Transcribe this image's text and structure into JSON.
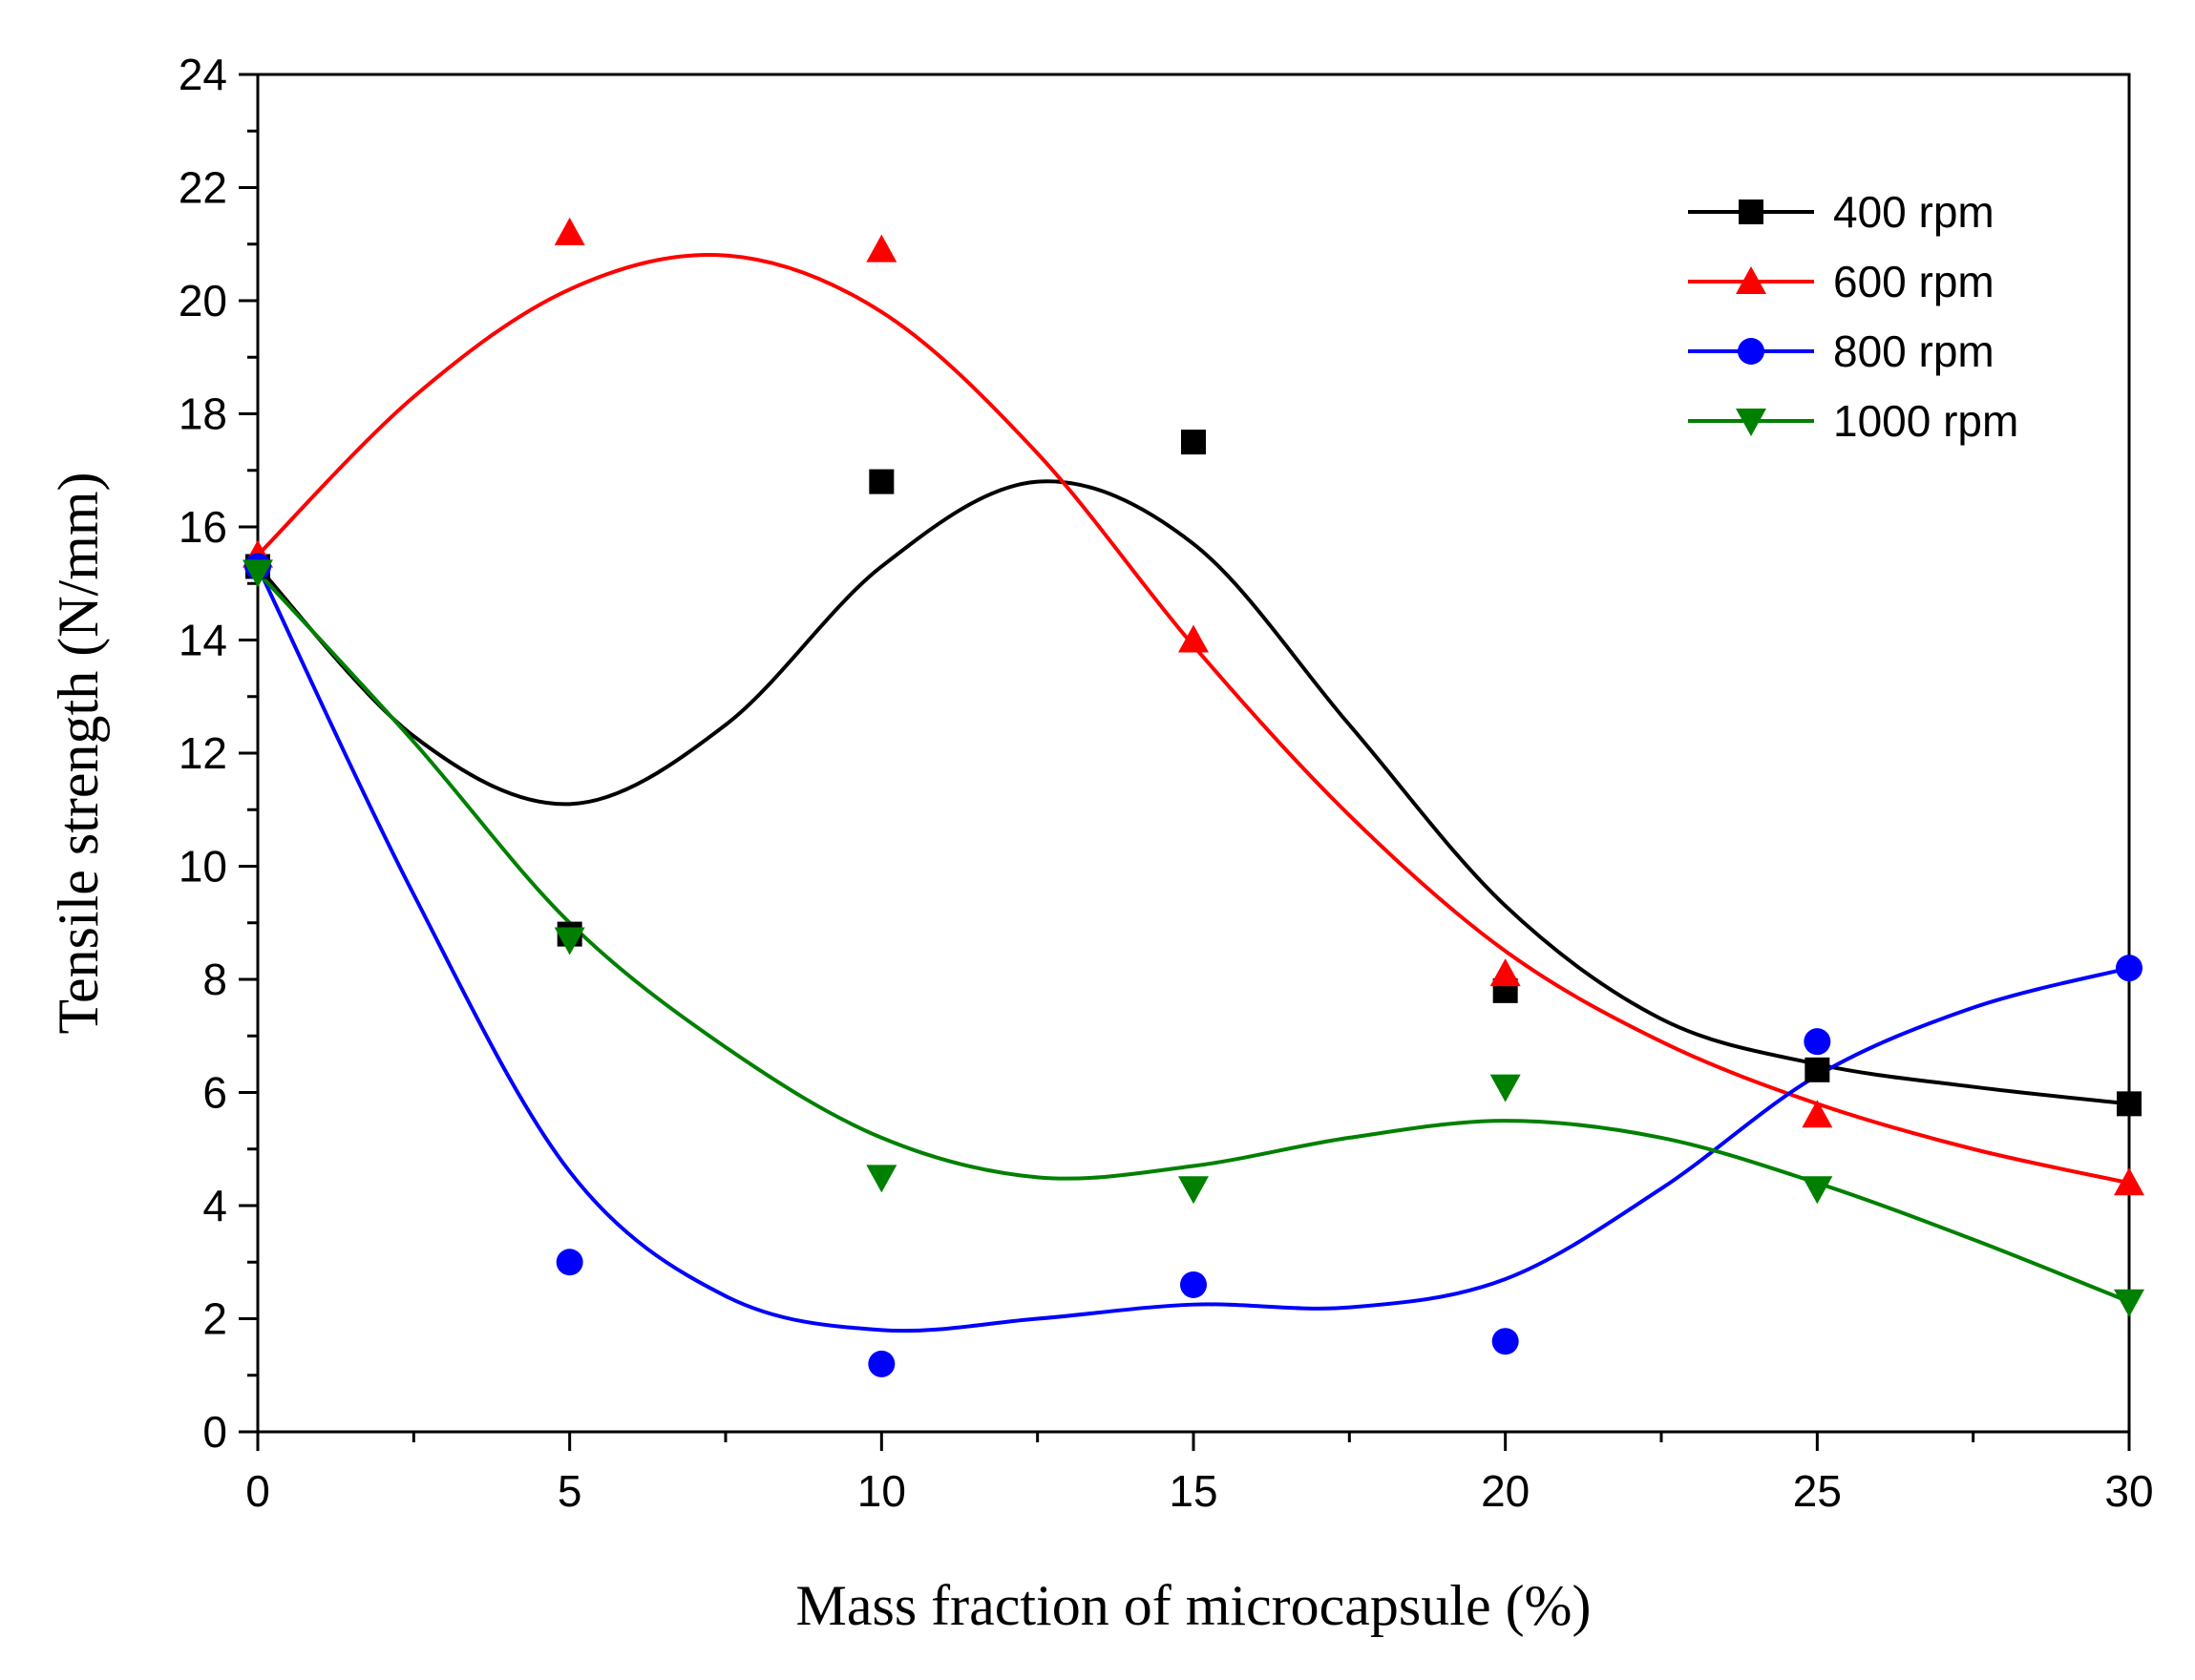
{
  "chart_data": {
    "type": "scatter",
    "title": "",
    "xlabel": "Mass fraction of microcapsule (%)",
    "ylabel": "Tensile strength (N/mm)",
    "xlim": [
      0,
      30
    ],
    "ylim": [
      0,
      24
    ],
    "xticks": [
      0,
      5,
      10,
      15,
      20,
      25,
      30
    ],
    "yticks": [
      0,
      2,
      4,
      6,
      8,
      10,
      12,
      14,
      16,
      18,
      20,
      22,
      24
    ],
    "grid": false,
    "legend_position": "top-right",
    "x": [
      0,
      5,
      10,
      15,
      20,
      25,
      30
    ],
    "series": [
      {
        "name": "400 rpm",
        "marker": "square",
        "color": "#000000",
        "values": [
          15.3,
          8.8,
          16.8,
          17.5,
          7.8,
          6.4,
          5.8
        ],
        "fit_curve": [
          [
            0,
            15.3
          ],
          [
            2.5,
            12.3
          ],
          [
            5,
            11.1
          ],
          [
            7.5,
            12.5
          ],
          [
            10,
            15.3
          ],
          [
            12.5,
            16.8
          ],
          [
            15,
            15.7
          ],
          [
            17.5,
            12.5
          ],
          [
            20,
            9.3
          ],
          [
            22.5,
            7.3
          ],
          [
            25,
            6.5
          ],
          [
            27.5,
            6.1
          ],
          [
            30,
            5.8
          ]
        ]
      },
      {
        "name": "600 rpm",
        "marker": "triangle-up",
        "color": "#ff0000",
        "values": [
          15.5,
          21.2,
          20.9,
          14.0,
          8.1,
          5.6,
          4.4
        ],
        "fit_curve": [
          [
            0,
            15.5
          ],
          [
            2.5,
            18.3
          ],
          [
            5,
            20.2
          ],
          [
            7.5,
            20.8
          ],
          [
            10,
            19.8
          ],
          [
            12.5,
            17.3
          ],
          [
            15,
            13.9
          ],
          [
            17.5,
            10.9
          ],
          [
            20,
            8.5
          ],
          [
            22.5,
            6.9
          ],
          [
            25,
            5.8
          ],
          [
            27.5,
            5.0
          ],
          [
            30,
            4.4
          ]
        ]
      },
      {
        "name": "800 rpm",
        "marker": "circle",
        "color": "#0000ff",
        "values": [
          15.3,
          3.0,
          1.2,
          2.6,
          1.6,
          6.9,
          8.2
        ],
        "fit_curve": [
          [
            0,
            15.3
          ],
          [
            2.5,
            9.5
          ],
          [
            5,
            4.6
          ],
          [
            7.5,
            2.4
          ],
          [
            10,
            1.8
          ],
          [
            12.5,
            2.0
          ],
          [
            15,
            2.25
          ],
          [
            17.5,
            2.2
          ],
          [
            20,
            2.7
          ],
          [
            22.5,
            4.3
          ],
          [
            25,
            6.3
          ],
          [
            27.5,
            7.5
          ],
          [
            30,
            8.2
          ]
        ]
      },
      {
        "name": "1000 rpm",
        "marker": "triangle-down",
        "color": "#008000",
        "values": [
          15.2,
          8.7,
          4.5,
          4.3,
          6.1,
          4.3,
          2.3
        ],
        "fit_curve": [
          [
            0,
            15.2
          ],
          [
            2.5,
            12.2
          ],
          [
            5,
            9.0
          ],
          [
            7.5,
            6.8
          ],
          [
            10,
            5.2
          ],
          [
            12.5,
            4.5
          ],
          [
            15,
            4.7
          ],
          [
            17.5,
            5.2
          ],
          [
            20,
            5.5
          ],
          [
            22.5,
            5.2
          ],
          [
            25,
            4.4
          ],
          [
            27.5,
            3.4
          ],
          [
            30,
            2.3
          ]
        ]
      }
    ]
  }
}
